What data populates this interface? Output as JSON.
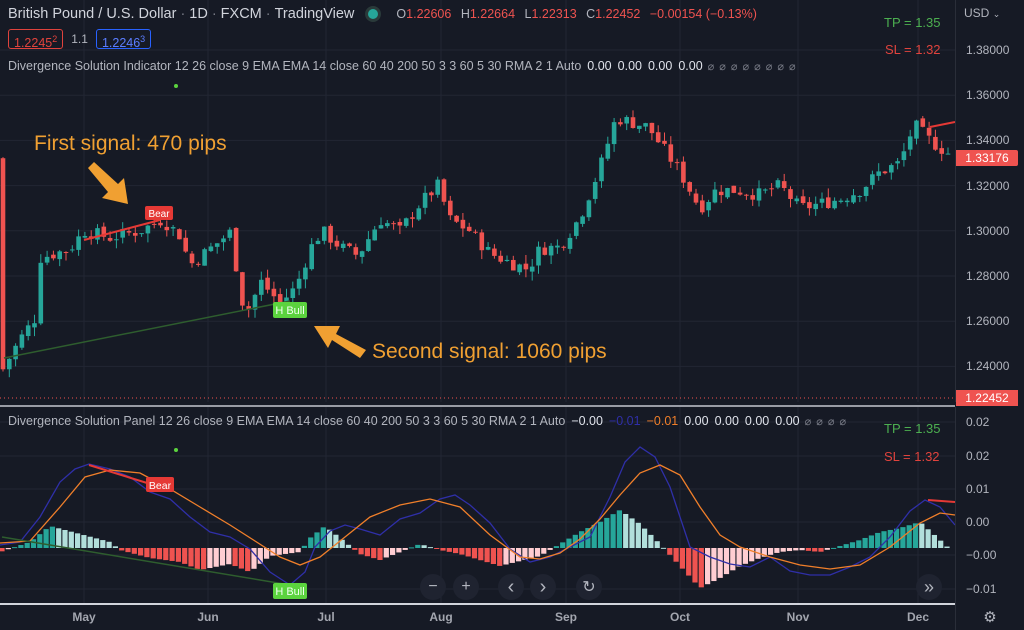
{
  "header": {
    "symbol": "British Pound / U.S. Dollar",
    "interval": "1D",
    "exchange": "FXCM",
    "source": "TradingView",
    "status_color": "#26a69a",
    "ohlc": {
      "open_label": "O",
      "open": "1.22606",
      "high_label": "H",
      "high": "1.22664",
      "low_label": "L",
      "low": "1.22313",
      "close_label": "C",
      "close": "1.22452",
      "change": "−0.00154 (−0.13%)"
    },
    "bid": {
      "main": "1.2245",
      "pip": "2"
    },
    "spread": "1.1",
    "ask": {
      "main": "1.2246",
      "pip": "3"
    }
  },
  "indicator_main": {
    "name": "Divergence Solution Indicator 12 26 close 9 EMA EMA 14 close 60 40 200 50 3 3 60 5 30 RMA 2 1 Auto",
    "values": [
      "0.00",
      "0.00",
      "0.00",
      "0.00"
    ],
    "na_count": 8,
    "na_glyph": "⌀",
    "tp": "TP = 1.35",
    "sl": "SL = 1.32"
  },
  "indicator_panel": {
    "name": "Divergence Solution Panel 12 26 close 9 EMA EMA 14 close 60 40 200 50 3 3 60 5 30 RMA 2 1 Auto",
    "values": [
      {
        "v": "−0.00",
        "color": "#e0e3eb"
      },
      {
        "v": "−0.01",
        "color": "#2f2fa8"
      },
      {
        "v": "−0.01",
        "color": "#f07f2a"
      },
      {
        "v": "0.00",
        "color": "#e0e3eb"
      },
      {
        "v": "0.00",
        "color": "#e0e3eb"
      },
      {
        "v": "0.00",
        "color": "#e0e3eb"
      },
      {
        "v": "0.00",
        "color": "#e0e3eb"
      }
    ],
    "na_count": 4,
    "tp": "TP = 1.35",
    "sl": "SL = 1.32"
  },
  "price_axis": {
    "currency": "USD",
    "ticks": [
      "1.38000",
      "1.36000",
      "1.34000",
      "1.32000",
      "1.30000",
      "1.28000",
      "1.26000",
      "1.24000"
    ],
    "last_price_tag": "1.33176",
    "current_price_tag": "1.22452",
    "tag_color": "#ef5350"
  },
  "panel_axis": {
    "ticks": [
      "0.02",
      "0.02",
      "0.01",
      "0.00",
      "−0.00",
      "−0.01"
    ]
  },
  "time_axis": {
    "months": [
      "May",
      "Jun",
      "Jul",
      "Aug",
      "Sep",
      "Oct",
      "Nov",
      "Dec"
    ]
  },
  "annotations": {
    "first": "First signal: 470 pips",
    "second": "Second signal: 1060 pips",
    "color": "#f0a032"
  },
  "signals": {
    "main_bear": "Bear",
    "main_bull": "H Bull",
    "panel_bear": "Bear",
    "panel_bull": "H Bull"
  },
  "controls": {
    "zoom_out": "−",
    "zoom_in": "+",
    "scroll_left": "‹",
    "scroll_right": "›",
    "reset": "↻",
    "go_latest": "»",
    "settings": "⚙"
  },
  "colors": {
    "up": "#26a69a",
    "down": "#ef5350",
    "macd": "#2f2fa8",
    "signal": "#f07f2a",
    "hist_up_strong": "#26a69a",
    "hist_up_weak": "#b2dfdb",
    "hist_down_strong": "#ef5350",
    "hist_down_weak": "#ffcdd2"
  },
  "chart_data": [
    {
      "type": "candlestick",
      "title": "British Pound / U.S. Dollar · 1D · FXCM",
      "xlabel": "",
      "ylabel": "USD",
      "x_ticks": [
        "May",
        "Jun",
        "Jul",
        "Aug",
        "Sep",
        "Oct",
        "Nov",
        "Dec"
      ],
      "ylim": [
        1.225,
        1.39
      ],
      "y_ticks": [
        1.24,
        1.26,
        1.28,
        1.3,
        1.32,
        1.34,
        1.36,
        1.38
      ],
      "grid": true,
      "approx_close_path": [
        {
          "month": "late Apr",
          "close": 1.24
        },
        {
          "month": "early May",
          "close": 1.265
        },
        {
          "month": "mid May",
          "close": 1.292
        },
        {
          "month": "late May",
          "close": 1.303
        },
        {
          "month": "early Jun",
          "close": 1.285
        },
        {
          "month": "mid Jun",
          "close": 1.297
        },
        {
          "month": "late Jun",
          "close": 1.265
        },
        {
          "month": "early Jul",
          "close": 1.3
        },
        {
          "month": "mid Jul",
          "close": 1.29
        },
        {
          "month": "early Aug",
          "close": 1.32
        },
        {
          "month": "late Aug",
          "close": 1.283
        },
        {
          "month": "early Sep",
          "close": 1.3
        },
        {
          "month": "mid Sep",
          "close": 1.355
        },
        {
          "month": "early Oct",
          "close": 1.31
        },
        {
          "month": "mid Oct",
          "close": 1.325
        },
        {
          "month": "early Nov",
          "close": 1.312
        },
        {
          "month": "late Nov",
          "close": 1.33
        },
        {
          "month": "early Dec",
          "close": 1.35
        },
        {
          "month": "mid Dec",
          "close": 1.33176
        }
      ],
      "annotations": [
        {
          "label": "Bear",
          "text": "First signal: 470 pips",
          "price": 1.303
        },
        {
          "label": "H Bull",
          "text": "Second signal: 1060 pips",
          "price": 1.263
        }
      ],
      "overlays": {
        "TP": 1.35,
        "SL": 1.32,
        "last": 1.33176,
        "current_line": 1.22452
      }
    },
    {
      "type": "bar+line",
      "title": "Divergence Solution Panel",
      "ylim": [
        -0.012,
        0.024
      ],
      "y_ticks": [
        0.02,
        0.02,
        0.01,
        0.0,
        -0.0,
        -0.01
      ],
      "series": [
        {
          "name": "MACD",
          "color": "#2f2fa8"
        },
        {
          "name": "Signal",
          "color": "#f07f2a"
        },
        {
          "name": "Histogram",
          "colors": [
            "#26a69a",
            "#b2dfdb",
            "#ef5350",
            "#ffcdd2"
          ]
        }
      ],
      "annotations": [
        "Bear",
        "H Bull"
      ]
    }
  ]
}
